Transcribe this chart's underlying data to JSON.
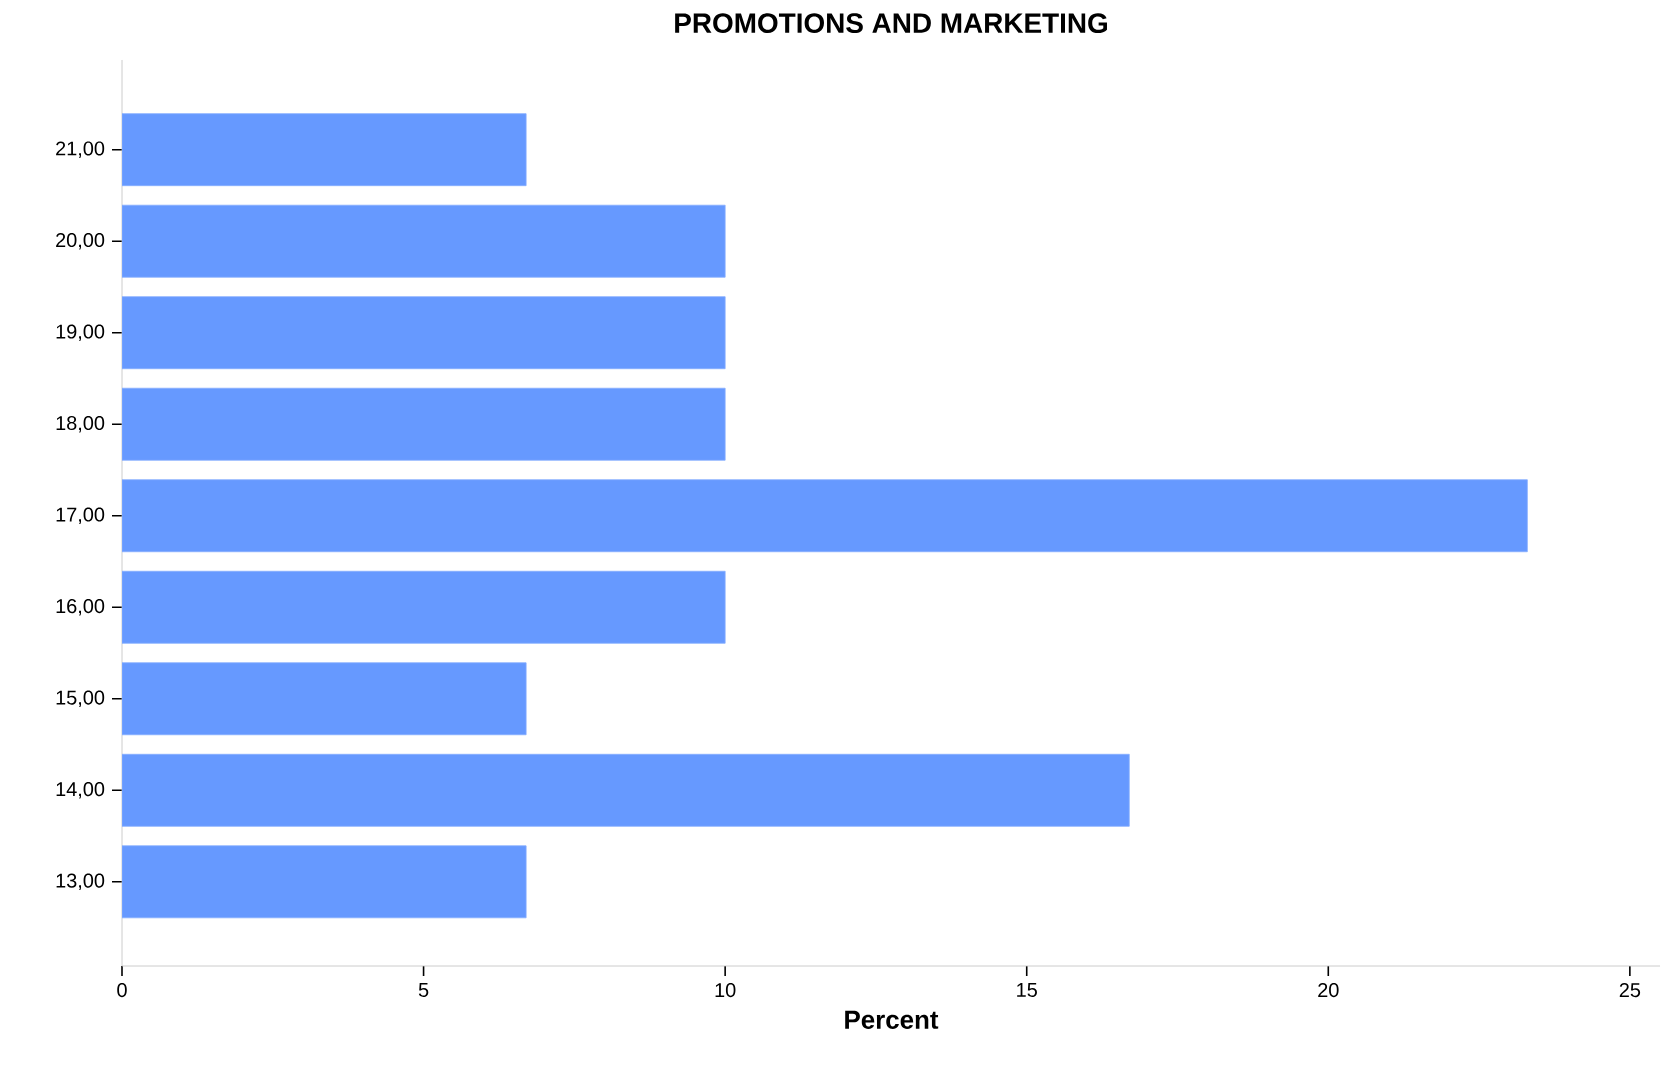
{
  "chart_data": {
    "type": "bar",
    "orientation": "horizontal",
    "title": "PROMOTIONS AND MARKETING",
    "xlabel": "Percent",
    "categories": [
      "21,00",
      "20,00",
      "19,00",
      "18,00",
      "17,00",
      "16,00",
      "15,00",
      "14,00",
      "13,00"
    ],
    "values": [
      6.7,
      10,
      10,
      10,
      23.3,
      10,
      6.7,
      16.7,
      6.7
    ],
    "color": "#6699ff",
    "xlim": [
      0,
      25.5
    ],
    "xticks": [
      0,
      5,
      10,
      15,
      20,
      25
    ],
    "grid": false
  }
}
